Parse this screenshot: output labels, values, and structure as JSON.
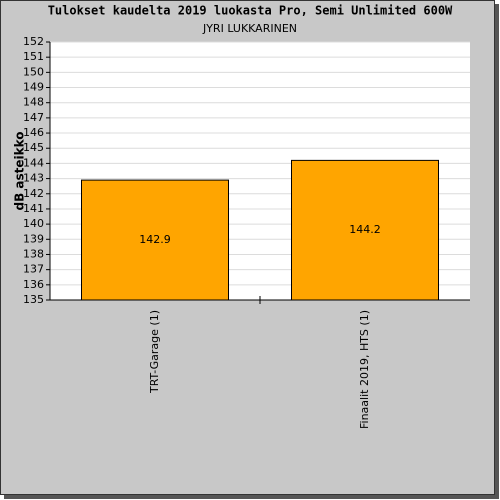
{
  "chart_data": {
    "type": "bar",
    "title": "Tulokset kaudelta 2019 luokasta Pro, Semi Unlimited 600W",
    "subtitle": "JYRI LUKKARINEN",
    "y_label": "dB asteikko",
    "categories": [
      "TRT-Garage (1)",
      "Finaalit 2019, HTS (1)"
    ],
    "values": [
      142.9,
      144.2
    ],
    "color": "#ffa500",
    "ylim": [
      135,
      152
    ],
    "yticks": [
      135,
      136,
      137,
      138,
      139,
      140,
      141,
      142,
      143,
      144,
      145,
      146,
      147,
      148,
      149,
      150,
      151,
      152
    ],
    "grid": true
  }
}
